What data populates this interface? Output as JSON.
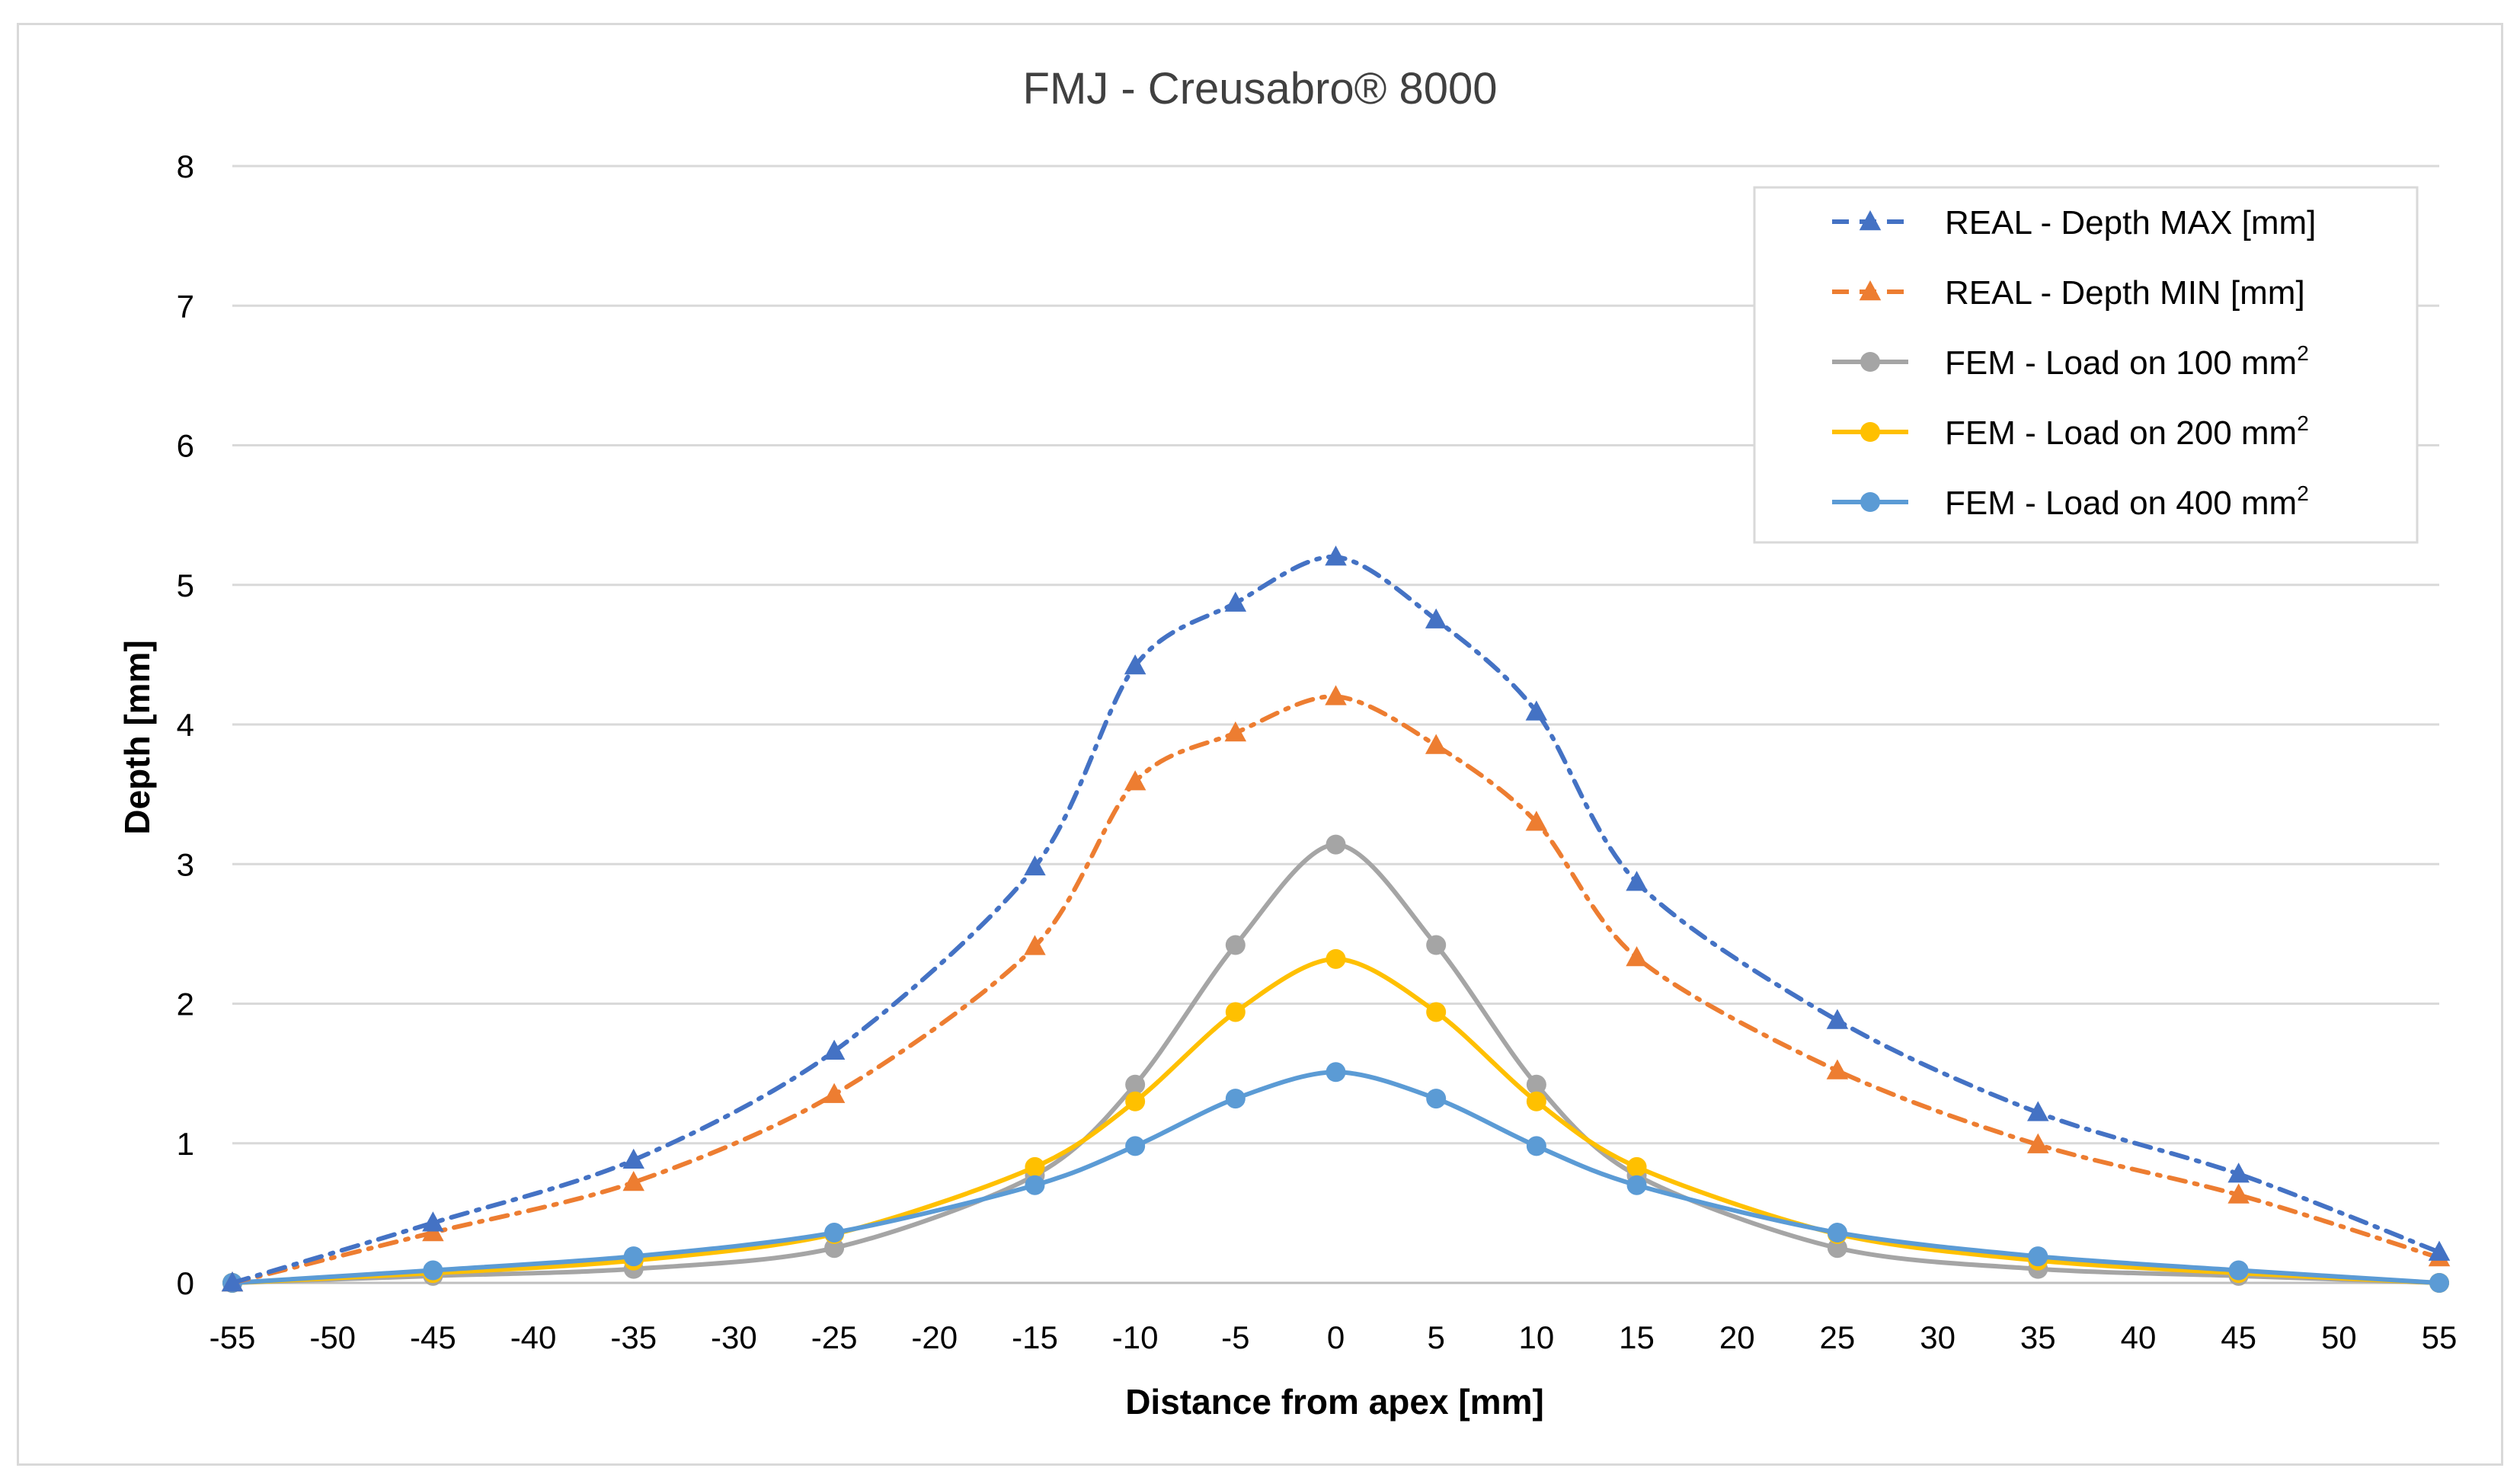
{
  "chart_data": {
    "type": "line",
    "title": "FMJ - Creusabro® 8000",
    "xlabel": "Distance from apex [mm]",
    "ylabel": "Depth [mm]",
    "xlim": [
      -55,
      55
    ],
    "ylim": [
      0,
      8
    ],
    "x_ticks": [
      -55,
      -50,
      -45,
      -40,
      -35,
      -30,
      -25,
      -20,
      -15,
      -10,
      -5,
      0,
      5,
      10,
      15,
      20,
      25,
      30,
      35,
      40,
      45,
      50,
      55
    ],
    "y_ticks": [
      0,
      1,
      2,
      3,
      4,
      5,
      6,
      7,
      8
    ],
    "grid": "horizontal",
    "legend_position": "top-right",
    "series": [
      {
        "name": "REAL - Depth MAX [mm]",
        "legend_main": "REAL - Depth MAX [mm]",
        "legend_sup": "",
        "color": "#4472c4",
        "marker": "triangle",
        "line_style": "dash-dot",
        "x": [
          -55,
          -45,
          -35,
          -25,
          -15,
          -10,
          -5,
          0,
          5,
          10,
          15,
          25,
          35,
          45,
          55
        ],
        "y": [
          0.0,
          0.43,
          0.88,
          1.66,
          2.98,
          4.42,
          4.87,
          5.2,
          4.75,
          4.09,
          2.87,
          1.88,
          1.22,
          0.78,
          0.22
        ]
      },
      {
        "name": "REAL - Depth MIN [mm]",
        "legend_main": "REAL - Depth MIN [mm]",
        "legend_sup": "",
        "color": "#ed7d31",
        "marker": "triangle",
        "line_style": "dash-dot",
        "x": [
          -55,
          -45,
          -35,
          -25,
          -15,
          -10,
          -5,
          0,
          5,
          10,
          15,
          25,
          35,
          45,
          55
        ],
        "y": [
          0.0,
          0.36,
          0.72,
          1.35,
          2.41,
          3.59,
          3.94,
          4.2,
          3.85,
          3.3,
          2.33,
          1.52,
          0.99,
          0.63,
          0.18
        ]
      },
      {
        "name": "FEM - Load on 100 mm2",
        "legend_main": "FEM - Load on 100 mm",
        "legend_sup": "2",
        "color": "#a5a5a5",
        "marker": "circle",
        "line_style": "solid",
        "x": [
          -55,
          -45,
          -35,
          -25,
          -15,
          -10,
          -5,
          0,
          5,
          10,
          15,
          25,
          35,
          45,
          55
        ],
        "y": [
          0.0,
          0.05,
          0.1,
          0.25,
          0.77,
          1.42,
          2.42,
          3.14,
          2.42,
          1.42,
          0.77,
          0.25,
          0.1,
          0.05,
          0.0
        ]
      },
      {
        "name": "FEM - Load on 200 mm2",
        "legend_main": "FEM - Load on 200 mm",
        "legend_sup": "2",
        "color": "#ffc000",
        "marker": "circle",
        "line_style": "solid",
        "x": [
          -55,
          -45,
          -35,
          -25,
          -15,
          -10,
          -5,
          0,
          5,
          10,
          15,
          25,
          35,
          45,
          55
        ],
        "y": [
          0.0,
          0.07,
          0.16,
          0.35,
          0.83,
          1.3,
          1.94,
          2.32,
          1.94,
          1.3,
          0.83,
          0.35,
          0.16,
          0.07,
          0.0
        ]
      },
      {
        "name": "FEM - Load on 400 mm2",
        "legend_main": "FEM - Load on 400 mm",
        "legend_sup": "2",
        "color": "#5b9bd5",
        "marker": "circle",
        "line_style": "solid",
        "x": [
          -55,
          -45,
          -35,
          -25,
          -15,
          -10,
          -5,
          0,
          5,
          10,
          15,
          25,
          35,
          45,
          55
        ],
        "y": [
          0.0,
          0.09,
          0.19,
          0.36,
          0.7,
          0.98,
          1.32,
          1.51,
          1.32,
          0.98,
          0.7,
          0.36,
          0.19,
          0.09,
          0.0
        ]
      }
    ]
  }
}
